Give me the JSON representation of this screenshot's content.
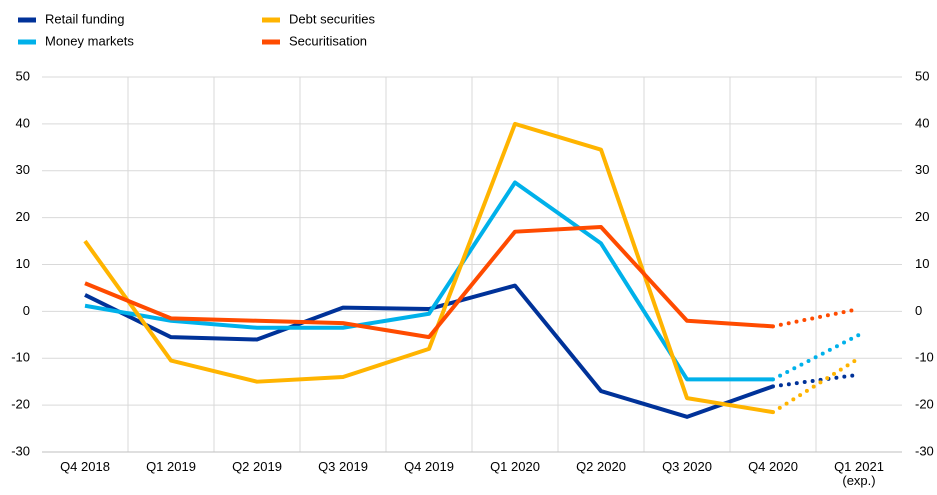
{
  "chart_data": {
    "type": "line",
    "categories": [
      "Q4 2018",
      "Q1 2019",
      "Q2 2019",
      "Q3 2019",
      "Q4 2019",
      "Q1 2020",
      "Q2 2020",
      "Q3 2020",
      "Q4 2020",
      "Q1 2021\n(exp.)"
    ],
    "series": [
      {
        "name": "Retail funding",
        "color": "#003299",
        "values": [
          3.5,
          -5.5,
          -6,
          0.8,
          0.5,
          5.5,
          -17,
          -22.5,
          -16,
          -13.5
        ]
      },
      {
        "name": "Money markets",
        "color": "#00b1ea",
        "values": [
          1.2,
          -2,
          -3.5,
          -3.5,
          -0.5,
          27.5,
          14.5,
          -14.5,
          -14.5,
          -5
        ]
      },
      {
        "name": "Debt securities",
        "color": "#ffb400",
        "values": [
          15,
          -10.5,
          -15,
          -14,
          -8,
          40,
          34.5,
          -18.5,
          -21.5,
          -10
        ]
      },
      {
        "name": "Securitisation",
        "color": "#ff4b00",
        "values": [
          6,
          -1.5,
          -2,
          -2.5,
          -5.5,
          17,
          18,
          -2,
          -3.2,
          0.5
        ]
      }
    ],
    "last_segment_style": "dotted",
    "ylim": [
      -30,
      50
    ],
    "yticks": [
      -30,
      -20,
      -10,
      0,
      10,
      20,
      30,
      40,
      50
    ],
    "y2lim": [
      -30,
      50
    ],
    "y2ticks": [
      -30,
      -20,
      -10,
      0,
      10,
      20,
      30,
      40,
      50
    ],
    "grid": true,
    "legend": "top-left"
  }
}
